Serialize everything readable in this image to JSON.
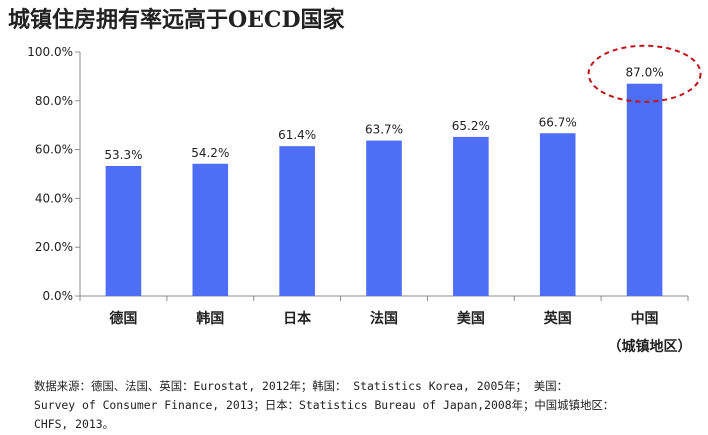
{
  "chart_data": {
    "type": "bar",
    "title": "城镇住房拥有率远高于OECD国家",
    "categories": [
      "德国",
      "韩国",
      "日本",
      "法国",
      "美国",
      "英国",
      "中国"
    ],
    "category_sublabel": "（城镇地区）",
    "values": [
      53.3,
      54.2,
      61.4,
      63.7,
      65.2,
      66.7,
      87.0
    ],
    "data_labels": [
      "53.3%",
      "54.2%",
      "61.4%",
      "63.7%",
      "65.2%",
      "66.7%",
      "87.0%"
    ],
    "yticks": [
      "0.0%",
      "20.0%",
      "40.0%",
      "60.0%",
      "80.0%",
      "100.0%"
    ],
    "ylim": [
      0,
      100
    ],
    "xlabel": "",
    "ylabel": "",
    "grid": false,
    "bar_color": "#4d6ef5",
    "highlight": {
      "category": "中国",
      "shape": "dashed-ellipse",
      "color": "#c0141b"
    }
  },
  "source_note": {
    "line1": "数据来源：德国、法国、英国：Eurostat, 2012年；韩国： Statistics Korea, 2005年； 美国：",
    "line2": "Survey of Consumer Finance, 2013；日本：Statistics Bureau of Japan,2008年；中国城镇地区：",
    "line3": "CHFS, 2013。"
  }
}
